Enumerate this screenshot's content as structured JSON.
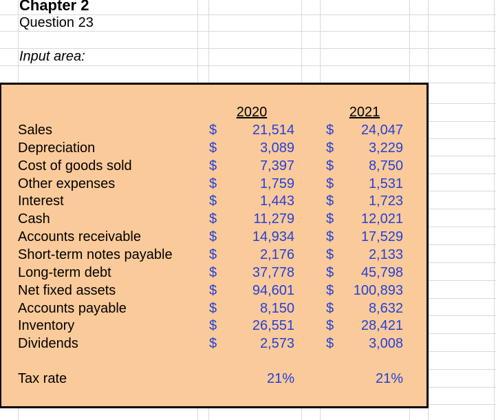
{
  "page": {
    "title": "Chapter 2",
    "subtitle": "Question 23",
    "section_label": "Input area:"
  },
  "colors": {
    "box_fill": "#FBCA9A",
    "box_border": "#000000",
    "value_text": "#2340D8",
    "gridline": "#D9D9D9"
  },
  "input_table": {
    "currency_symbol": "$",
    "columns": [
      "2020",
      "2021"
    ],
    "rows": [
      {
        "label": "Sales",
        "y2020": "21,514",
        "y2021": "24,047"
      },
      {
        "label": "Depreciation",
        "y2020": "3,089",
        "y2021": "3,229"
      },
      {
        "label": "Cost of goods sold",
        "y2020": "7,397",
        "y2021": "8,750"
      },
      {
        "label": "Other expenses",
        "y2020": "1,759",
        "y2021": "1,531"
      },
      {
        "label": "Interest",
        "y2020": "1,443",
        "y2021": "1,723"
      },
      {
        "label": "Cash",
        "y2020": "11,279",
        "y2021": "12,021"
      },
      {
        "label": "Accounts receivable",
        "y2020": "14,934",
        "y2021": "17,529"
      },
      {
        "label": "Short-term notes payable",
        "y2020": "2,176",
        "y2021": "2,133"
      },
      {
        "label": "Long-term debt",
        "y2020": "37,778",
        "y2021": "45,798"
      },
      {
        "label": "Net fixed assets",
        "y2020": "94,601",
        "y2021": "100,893"
      },
      {
        "label": "Accounts payable",
        "y2020": "8,150",
        "y2021": "8,632"
      },
      {
        "label": "Inventory",
        "y2020": "26,551",
        "y2021": "28,421"
      },
      {
        "label": "Dividends",
        "y2020": "2,573",
        "y2021": "3,008"
      }
    ],
    "tax_row": {
      "label": "Tax rate",
      "y2020": "21%",
      "y2021": "21%"
    }
  }
}
